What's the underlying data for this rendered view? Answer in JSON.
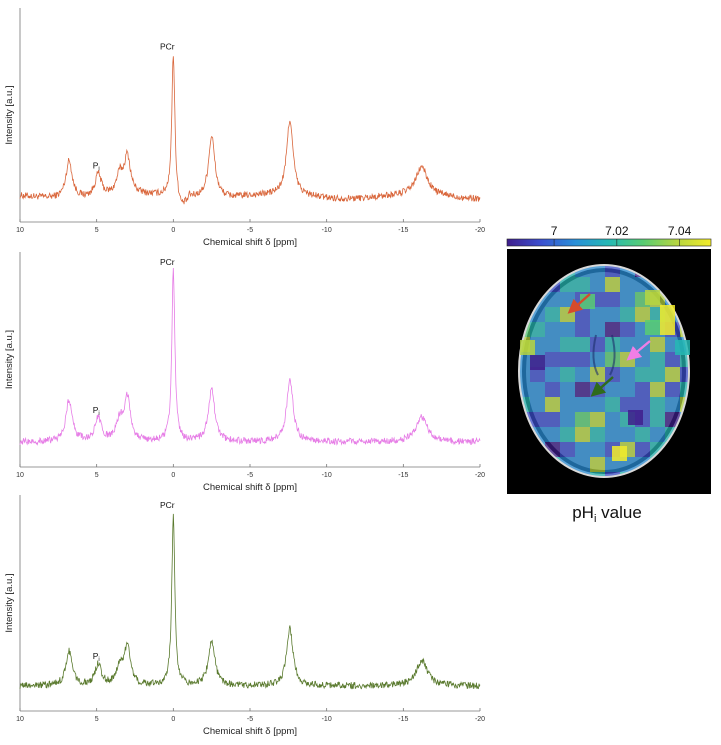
{
  "chart_data": [
    {
      "type": "line",
      "panel": "top",
      "xlabel": "Chemical shift δ [ppm]",
      "ylabel": "Intensity [a.u.]",
      "xlim": [
        10,
        -20
      ],
      "xticks": [
        10,
        5,
        0,
        -5,
        -10,
        -15,
        -20
      ],
      "series": [
        {
          "color": "#d9663b"
        }
      ],
      "peaks": [
        {
          "ppm": 6.8,
          "height": 0.2
        },
        {
          "ppm": 4.9,
          "height": 0.12
        },
        {
          "ppm": 3.5,
          "height": 0.1
        },
        {
          "ppm": 3.0,
          "height": 0.2
        },
        {
          "ppm": 0.0,
          "height": 0.75
        },
        {
          "ppm": -2.5,
          "height": 0.33
        },
        {
          "ppm": -7.6,
          "height": 0.4
        },
        {
          "ppm": -16.2,
          "height": 0.15
        }
      ],
      "annotations": [
        {
          "text": "PCr",
          "ppm": 0.0
        },
        {
          "text": "P",
          "sub": "i",
          "ppm": 4.9
        }
      ]
    },
    {
      "type": "line",
      "panel": "middle",
      "xlabel": "Chemical shift δ [ppm]",
      "ylabel": "Intensity [a.u.]",
      "xlim": [
        10,
        -20
      ],
      "xticks": [
        10,
        5,
        0,
        -5,
        -10,
        -15,
        -20
      ],
      "series": [
        {
          "color": "#e67de6"
        }
      ],
      "peaks": [
        {
          "ppm": 6.8,
          "height": 0.22
        },
        {
          "ppm": 4.9,
          "height": 0.12
        },
        {
          "ppm": 3.5,
          "height": 0.1
        },
        {
          "ppm": 3.0,
          "height": 0.23
        },
        {
          "ppm": 0.0,
          "height": 0.9
        },
        {
          "ppm": -2.5,
          "height": 0.27
        },
        {
          "ppm": -7.6,
          "height": 0.33
        },
        {
          "ppm": -16.2,
          "height": 0.13
        }
      ],
      "annotations": [
        {
          "text": "PCr",
          "ppm": 0.0
        },
        {
          "text": "P",
          "sub": "i",
          "ppm": 4.9
        }
      ]
    },
    {
      "type": "line",
      "panel": "bottom",
      "xlabel": "Chemical shift δ [ppm]",
      "ylabel": "Intensity [a.u.]",
      "xlim": [
        10,
        -20
      ],
      "xticks": [
        10,
        5,
        0,
        -5,
        -10,
        -15,
        -20
      ],
      "series": [
        {
          "color": "#5a7a2e"
        }
      ],
      "peaks": [
        {
          "ppm": 6.8,
          "height": 0.18
        },
        {
          "ppm": 4.9,
          "height": 0.11
        },
        {
          "ppm": 3.5,
          "height": 0.09
        },
        {
          "ppm": 3.0,
          "height": 0.2
        },
        {
          "ppm": 0.0,
          "height": 0.9
        },
        {
          "ppm": -2.5,
          "height": 0.24
        },
        {
          "ppm": -7.6,
          "height": 0.3
        },
        {
          "ppm": -16.2,
          "height": 0.13
        }
      ],
      "annotations": [
        {
          "text": "PCr",
          "ppm": 0.0
        },
        {
          "text": "P",
          "sub": "i",
          "ppm": 4.9
        }
      ]
    },
    {
      "type": "heatmap",
      "panel": "pHi map",
      "title": "pH",
      "title_sub": "i",
      "title_rest": " value",
      "colorbar": {
        "ticks": [
          "7",
          "7.02",
          "7.04"
        ],
        "tick_values": [
          7.0,
          7.02,
          7.04
        ],
        "range": [
          6.985,
          7.05
        ],
        "colormap": [
          "#3f1e8c",
          "#3b4fcf",
          "#2a8fd8",
          "#25b9b4",
          "#58cc73",
          "#b6d541",
          "#f3ec2a"
        ]
      },
      "arrows": [
        {
          "color": "#d64b2b",
          "direction": "down-left"
        },
        {
          "color": "#f07ee6",
          "direction": "down-left"
        },
        {
          "color": "#2f6b1c",
          "direction": "down-left"
        }
      ]
    }
  ]
}
